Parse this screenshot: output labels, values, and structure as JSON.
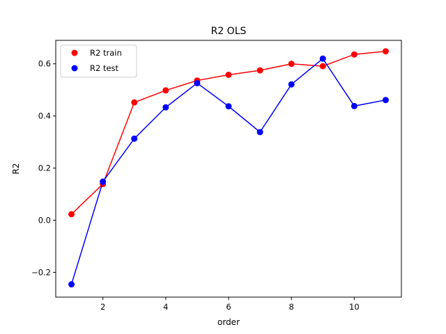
{
  "chart_data": {
    "type": "line",
    "title": "R2 OLS",
    "xlabel": "order",
    "ylabel": "R2",
    "xlim": [
      0.5,
      11.5
    ],
    "ylim": [
      -0.295,
      0.69
    ],
    "xticks": [
      2,
      4,
      6,
      8,
      10
    ],
    "yticks": [
      -0.2,
      0.0,
      0.2,
      0.4,
      0.6
    ],
    "xtick_labels": [
      "2",
      "4",
      "6",
      "8",
      "10"
    ],
    "ytick_labels": [
      "−0.2",
      "0.0",
      "0.2",
      "0.4",
      "0.6"
    ],
    "grid": false,
    "legend": "top-left",
    "x": [
      1,
      2,
      3,
      4,
      5,
      6,
      7,
      8,
      9,
      10,
      11
    ],
    "series": [
      {
        "name": "R2 train",
        "color": "#ff0000",
        "values": [
          0.023,
          0.139,
          0.452,
          0.498,
          0.536,
          0.558,
          0.575,
          0.6,
          0.591,
          0.636,
          0.648
        ]
      },
      {
        "name": "R2 test",
        "color": "#0000ff",
        "values": [
          -0.246,
          0.148,
          0.313,
          0.433,
          0.526,
          0.437,
          0.338,
          0.521,
          0.62,
          0.438,
          0.461
        ]
      }
    ]
  }
}
